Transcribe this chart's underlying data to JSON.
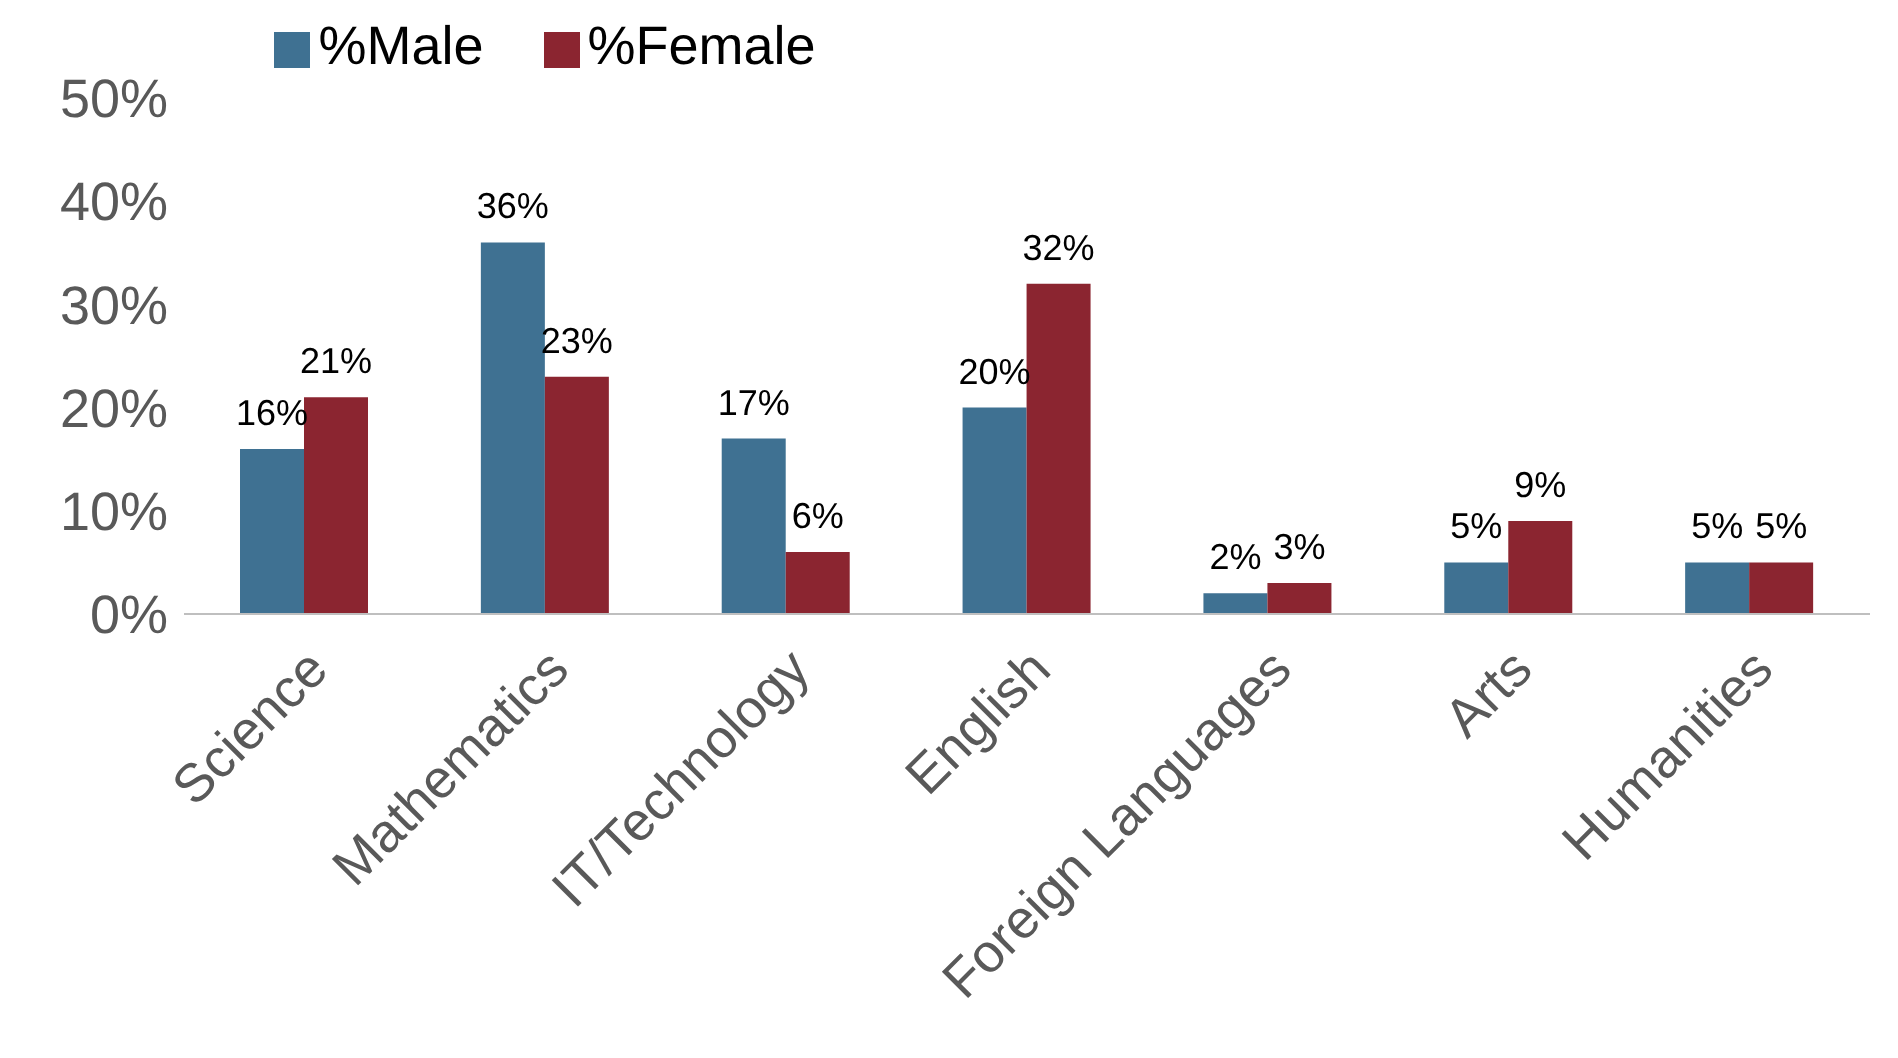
{
  "chart_data": {
    "type": "bar",
    "categories": [
      "Science",
      "Mathematics",
      "IT/Technology",
      "English",
      "Foreign Languages",
      "Arts",
      "Humanities"
    ],
    "series": [
      {
        "name": "%Male",
        "color": "#3f7192",
        "values": [
          16,
          36,
          17,
          20,
          2,
          5,
          5
        ],
        "value_labels": [
          "16%",
          "36%",
          "17%",
          "20%",
          "2%",
          "5%",
          "5%"
        ]
      },
      {
        "name": "%Female",
        "color": "#8b2530",
        "values": [
          21,
          23,
          6,
          32,
          3,
          9,
          5
        ],
        "value_labels": [
          "21%",
          "23%",
          "6%",
          "32%",
          "3%",
          "9%",
          "5%"
        ]
      }
    ],
    "ylim": [
      0,
      50
    ],
    "yticks": [
      {
        "value": 0,
        "label": "0%"
      },
      {
        "value": 10,
        "label": "10%"
      },
      {
        "value": 20,
        "label": "20%"
      },
      {
        "value": 30,
        "label": "30%"
      },
      {
        "value": 40,
        "label": "40%"
      },
      {
        "value": 50,
        "label": "50%"
      }
    ],
    "grid": false,
    "legend": "top"
  }
}
